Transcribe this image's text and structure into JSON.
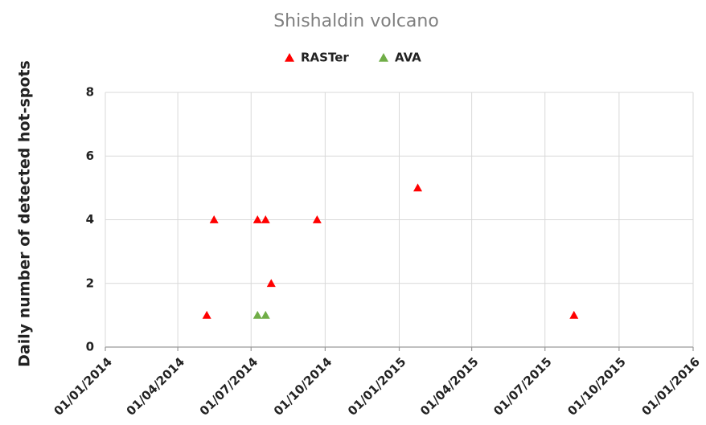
{
  "chart_data": {
    "type": "scatter",
    "title": "Shishaldin volcano",
    "ylabel": "Daily number of detected hot-spots",
    "series": [
      {
        "name": "RASTer",
        "color": "#ff0000",
        "x": [
          "2014-05-07",
          "2014-05-16",
          "2014-07-09",
          "2014-07-19",
          "2014-07-26",
          "2014-09-21",
          "2015-01-24",
          "2015-08-06"
        ],
        "values": [
          1,
          4,
          4,
          4,
          2,
          4,
          5,
          1
        ]
      },
      {
        "name": "AVA",
        "color": "#70ad47",
        "x": [
          "2014-07-09",
          "2014-07-19"
        ],
        "values": [
          1,
          1
        ]
      }
    ],
    "xlim": [
      "2014-01-01",
      "2016-01-01"
    ],
    "xticks": [
      {
        "value": "2014-01-01",
        "label": "01/01/2014"
      },
      {
        "value": "2014-04-01",
        "label": "01/04/2014"
      },
      {
        "value": "2014-07-01",
        "label": "01/07/2014"
      },
      {
        "value": "2014-10-01",
        "label": "01/10/2014"
      },
      {
        "value": "2015-01-01",
        "label": "01/01/2015"
      },
      {
        "value": "2015-04-01",
        "label": "01/04/2015"
      },
      {
        "value": "2015-07-01",
        "label": "01/07/2015"
      },
      {
        "value": "2015-10-01",
        "label": "01/10/2015"
      },
      {
        "value": "2016-01-01",
        "label": "01/01/2016"
      }
    ],
    "ylim": [
      0,
      8
    ],
    "yticks": [
      0,
      2,
      4,
      6,
      8
    ],
    "grid": true,
    "legend": "top"
  }
}
